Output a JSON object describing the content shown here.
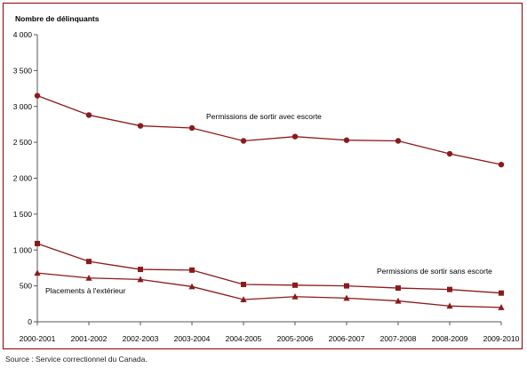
{
  "chart_data": {
    "type": "line",
    "ylabel": "Nombre de délinquants",
    "x": [
      "2000-2001",
      "2001-2002",
      "2002-2003",
      "2003-2004",
      "2004-2005",
      "2005-2006",
      "2006-2007",
      "2007-2008",
      "2008-2009",
      "2009-2010"
    ],
    "ylim": [
      0,
      4000
    ],
    "yticks": [
      0,
      500,
      1000,
      1500,
      2000,
      2500,
      3000,
      3500,
      4000
    ],
    "ytick_labels": [
      "0",
      "500",
      "1 000",
      "1 500",
      "2 000",
      "2 500",
      "3 000",
      "3 500",
      "4 000"
    ],
    "grid": false,
    "legend": "none",
    "series": [
      {
        "name": "Permissions de sortir avec escorte",
        "marker": "circle",
        "color": "#8b1a1a",
        "values": [
          3150,
          2880,
          2730,
          2700,
          2520,
          2580,
          2530,
          2520,
          2340,
          2190
        ]
      },
      {
        "name": "Permissions de sortir sans escorte",
        "marker": "square",
        "color": "#8b1a1a",
        "values": [
          1090,
          840,
          730,
          720,
          520,
          510,
          500,
          470,
          450,
          400
        ]
      },
      {
        "name": "Placements à l'extérieur",
        "marker": "triangle",
        "color": "#8b1a1a",
        "values": [
          680,
          610,
          590,
          490,
          310,
          350,
          330,
          290,
          220,
          200
        ]
      }
    ]
  },
  "source": "Source : Service correctionnel du Canada."
}
